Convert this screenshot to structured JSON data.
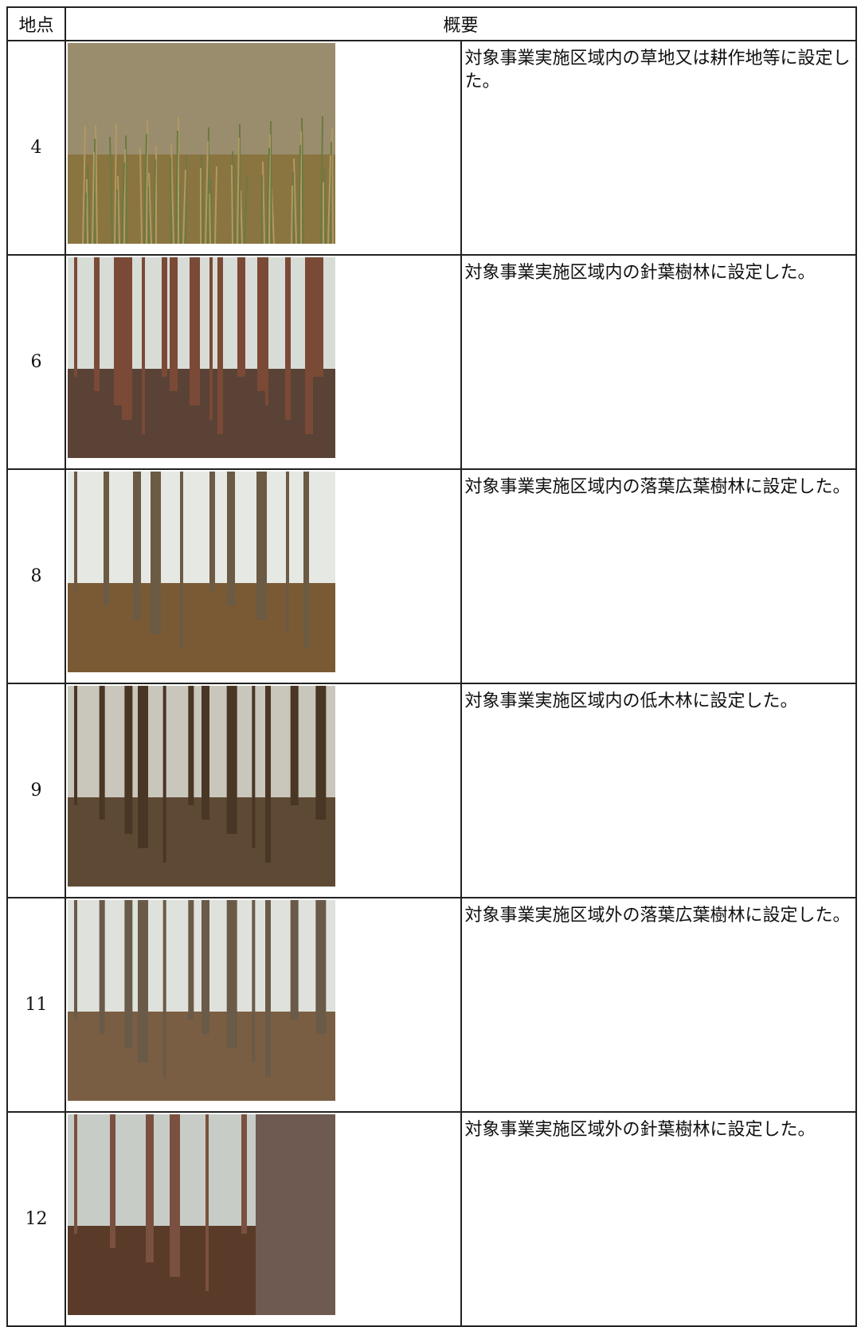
{
  "table": {
    "header": [
      "地点",
      "概要"
    ],
    "rows": [
      [
        "4",
        "対象事業実施区域内の草地又は耕作地等に設定した。"
      ],
      [
        "6",
        "対象事業実施区域内の針葉樹林に設定した。"
      ],
      [
        "8",
        "対象事業実施区域内の落葉広葉樹林に設定した。"
      ],
      [
        "9",
        "対象事業実施区域内の低木林に設定した。"
      ],
      [
        "11",
        "対象事業実施区域外の落葉広葉樹林に設定した。"
      ],
      [
        "12",
        "対象事業実施区域外の針葉樹林に設定した。"
      ]
    ]
  }
}
